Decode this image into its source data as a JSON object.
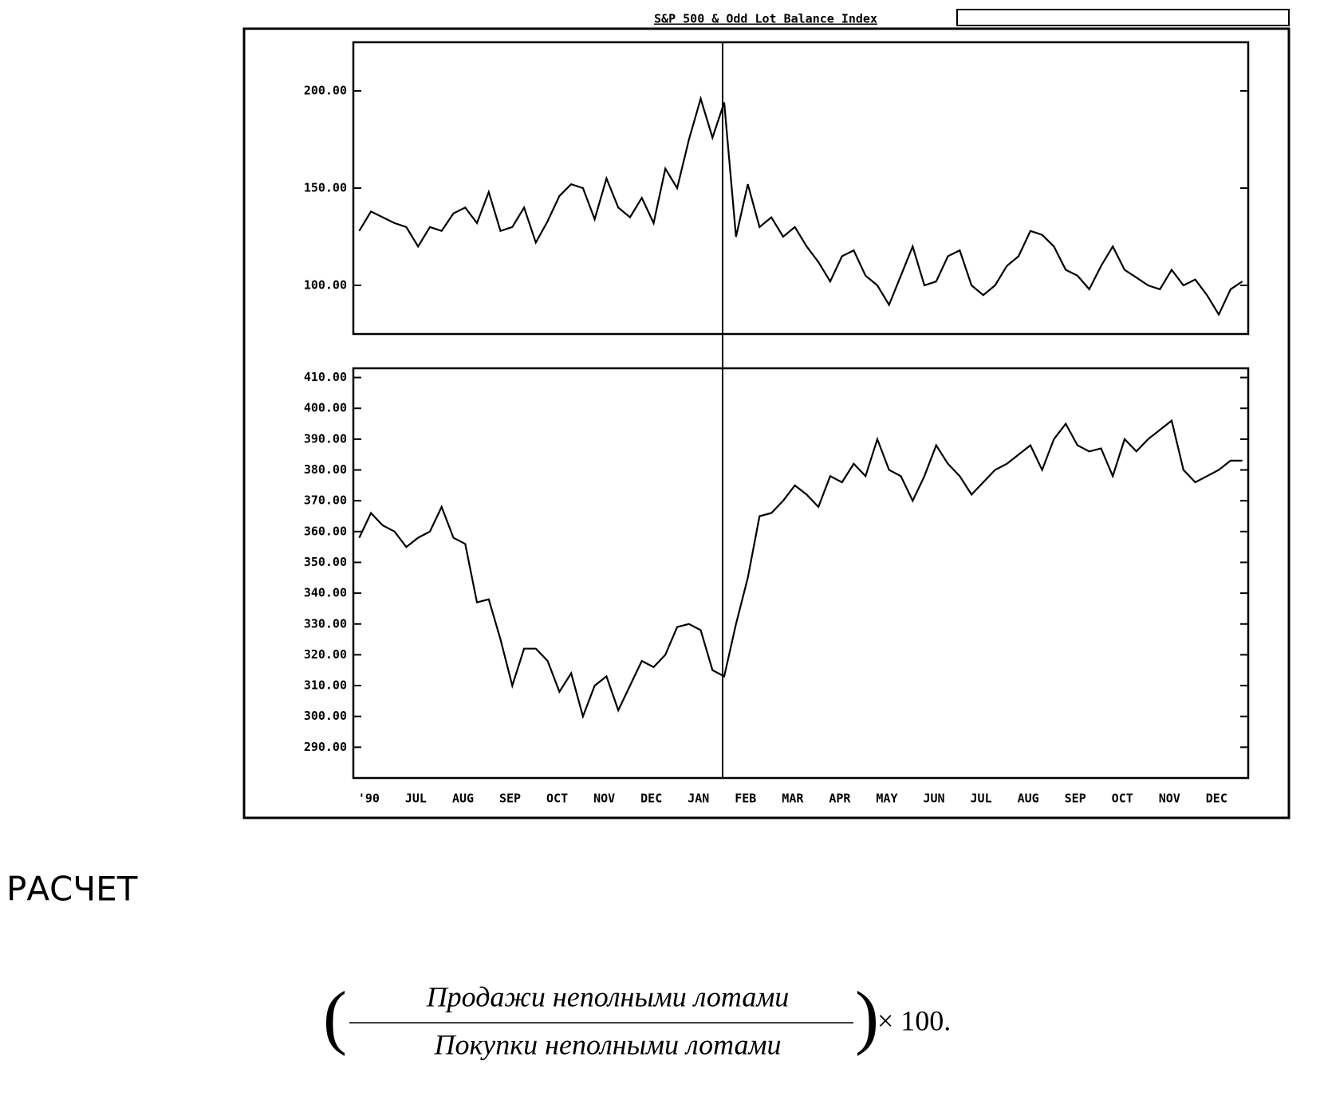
{
  "chart_data": [
    {
      "type": "line",
      "title": "S&P 500 & Odd Lot Balance Index",
      "color": "#000000",
      "values": [
        128,
        138,
        135,
        132,
        130,
        120,
        130,
        128,
        137,
        140,
        132,
        148,
        128,
        130,
        140,
        122,
        133,
        146,
        152,
        150,
        134,
        155,
        140,
        135,
        145,
        132,
        160,
        150,
        175,
        196,
        176,
        194,
        125,
        152,
        130,
        135,
        125,
        130,
        120,
        112,
        102,
        115,
        118,
        105,
        100,
        90,
        105,
        120,
        100,
        102,
        115,
        118,
        100,
        95,
        100,
        110,
        115,
        128,
        126,
        120,
        108,
        105,
        98,
        110,
        120,
        108,
        104,
        100,
        98,
        108,
        100,
        103,
        95,
        85,
        98,
        102
      ],
      "ylim": [
        75,
        225
      ],
      "yticks": [
        {
          "value": 100,
          "label": "100.00"
        },
        {
          "value": 150,
          "label": "150.00"
        },
        {
          "value": 200,
          "label": "200.00"
        }
      ]
    },
    {
      "type": "line",
      "color": "#000000",
      "categories": [
        "'90",
        null,
        null,
        null,
        "JUL",
        null,
        null,
        null,
        "AUG",
        null,
        null,
        null,
        "SEP",
        null,
        null,
        null,
        "OCT",
        null,
        null,
        null,
        "NOV",
        null,
        null,
        null,
        "DEC",
        null,
        null,
        null,
        "JAN",
        null,
        null,
        null,
        "FEB",
        null,
        null,
        null,
        "MAR",
        null,
        null,
        null,
        "APR",
        null,
        null,
        null,
        "MAY",
        null,
        null,
        null,
        "JUN",
        null,
        null,
        null,
        "JUL",
        null,
        null,
        null,
        "AUG",
        null,
        null,
        null,
        "SEP",
        null,
        null,
        null,
        "OCT",
        null,
        null,
        null,
        "NOV",
        null,
        null,
        null,
        "DEC",
        null,
        null,
        null
      ],
      "values": [
        358,
        366,
        362,
        360,
        355,
        358,
        360,
        368,
        358,
        356,
        337,
        338,
        325,
        310,
        322,
        322,
        318,
        308,
        314,
        300,
        310,
        313,
        302,
        310,
        318,
        316,
        320,
        329,
        330,
        328,
        315,
        313,
        330,
        345,
        365,
        366,
        370,
        375,
        372,
        368,
        378,
        376,
        382,
        378,
        390,
        380,
        378,
        370,
        378,
        388,
        382,
        378,
        372,
        376,
        380,
        382,
        385,
        388,
        380,
        390,
        395,
        388,
        386,
        387,
        378,
        390,
        386,
        390,
        393,
        396,
        380,
        376,
        378,
        380,
        383,
        383
      ],
      "ylim": [
        280,
        413
      ],
      "yticks": [
        {
          "value": 290,
          "label": "290.00"
        },
        {
          "value": 300,
          "label": "300.00"
        },
        {
          "value": 310,
          "label": "310.00"
        },
        {
          "value": 320,
          "label": "320.00"
        },
        {
          "value": 330,
          "label": "330.00"
        },
        {
          "value": 340,
          "label": "340.00"
        },
        {
          "value": 350,
          "label": "350.00"
        },
        {
          "value": 360,
          "label": "360.00"
        },
        {
          "value": 370,
          "label": "370.00"
        },
        {
          "value": 380,
          "label": "380.00"
        },
        {
          "value": 390,
          "label": "390.00"
        },
        {
          "value": 400,
          "label": "400.00"
        },
        {
          "value": 410,
          "label": "410.00"
        }
      ]
    }
  ],
  "heading": "РАСЧЕТ",
  "formula": {
    "numerator": "Продажи неполными лотами",
    "denominator": "Покупки неполными лотами",
    "multiplier": "× 100."
  }
}
